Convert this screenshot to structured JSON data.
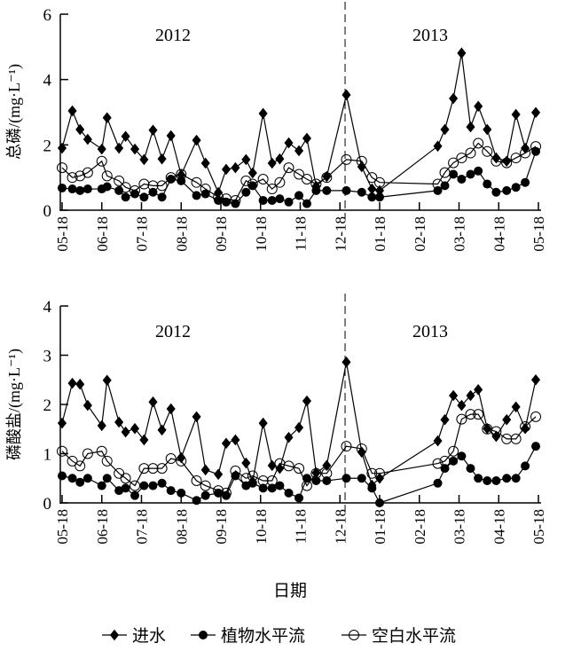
{
  "chart_data": [
    {
      "type": "line",
      "ylabel": "总磷/(mg·L⁻¹)",
      "ylim": [
        0,
        6
      ],
      "yticks": [
        "0",
        "2",
        "4",
        "6"
      ],
      "ytick_values": [
        0,
        2,
        4,
        6
      ],
      "xticks": [
        "05-18",
        "06-18",
        "07-18",
        "08-18",
        "09-18",
        "10-18",
        "11-18",
        "12-18",
        "01-18",
        "02-18",
        "03-18",
        "04-18",
        "05-18"
      ],
      "xtick_dates": [
        "2012-05-18",
        "2012-06-18",
        "2012-07-18",
        "2012-08-18",
        "2012-09-18",
        "2012-10-18",
        "2012-11-18",
        "2012-12-18",
        "2013-01-18",
        "2013-02-18",
        "2013-03-18",
        "2013-04-18",
        "2013-05-18"
      ],
      "annotations": [
        "2012",
        "2013"
      ],
      "divider_date": "2012-12-22",
      "x": [
        "2012-05-18",
        "2012-05-26",
        "2012-06-01",
        "2012-06-07",
        "2012-06-18",
        "2012-06-22",
        "2012-07-01",
        "2012-07-06",
        "2012-07-13",
        "2012-07-20",
        "2012-07-27",
        "2012-08-03",
        "2012-08-10",
        "2012-08-18",
        "2012-08-30",
        "2012-09-06",
        "2012-09-16",
        "2012-09-22",
        "2012-09-29",
        "2012-10-07",
        "2012-10-12",
        "2012-10-20",
        "2012-10-27",
        "2012-11-02",
        "2012-11-09",
        "2012-11-17",
        "2012-11-23",
        "2012-11-30",
        "2012-12-08",
        "2012-12-23",
        "2013-01-04",
        "2013-01-12",
        "2013-01-18",
        "2013-03-03",
        "2013-03-08",
        "2013-03-14",
        "2013-03-20",
        "2013-03-27",
        "2013-04-02",
        "2013-04-09",
        "2013-04-16",
        "2013-04-24",
        "2013-05-01",
        "2013-05-08",
        "2013-05-16"
      ],
      "series": [
        {
          "name": "进水",
          "marker": "diamond",
          "values": [
            1.9,
            3.04,
            2.47,
            2.17,
            1.87,
            2.83,
            1.9,
            2.26,
            1.87,
            1.55,
            2.45,
            1.57,
            2.28,
            1.08,
            2.14,
            1.44,
            0.54,
            1.25,
            1.3,
            1.55,
            1.14,
            2.96,
            1.44,
            1.57,
            2.06,
            1.82,
            2.2,
            0.73,
            1.03,
            3.53,
            1.33,
            0.65,
            0.6,
            1.96,
            2.47,
            3.42,
            4.81,
            2.55,
            3.18,
            2.47,
            1.6,
            1.5,
            2.93,
            1.9,
            2.99
          ]
        },
        {
          "name": "植物水平流",
          "marker": "filled-circle",
          "values": [
            0.68,
            0.65,
            0.6,
            0.65,
            0.65,
            0.72,
            0.6,
            0.4,
            0.5,
            0.4,
            0.55,
            0.4,
            0.95,
            0.9,
            0.45,
            0.5,
            0.3,
            0.25,
            0.2,
            0.55,
            0.75,
            0.3,
            0.3,
            0.35,
            0.25,
            0.45,
            0.2,
            0.6,
            0.6,
            0.6,
            0.55,
            0.4,
            0.4,
            0.6,
            0.75,
            1.1,
            0.95,
            1.1,
            1.2,
            0.8,
            0.55,
            0.6,
            0.7,
            0.85,
            1.8
          ]
        },
        {
          "name": "空白水平流",
          "marker": "open-circle",
          "values": [
            1.3,
            1.0,
            1.05,
            1.15,
            1.5,
            1.05,
            0.9,
            0.7,
            0.6,
            0.8,
            0.75,
            0.75,
            1.0,
            1.1,
            0.85,
            0.65,
            0.4,
            0.35,
            0.3,
            0.9,
            0.8,
            0.95,
            0.65,
            0.85,
            1.3,
            1.1,
            0.95,
            0.8,
            1.0,
            1.55,
            1.5,
            1.0,
            0.85,
            0.8,
            1.15,
            1.45,
            1.6,
            1.75,
            2.05,
            1.8,
            1.5,
            1.45,
            1.6,
            1.75,
            1.95
          ]
        }
      ]
    },
    {
      "type": "line",
      "ylabel": "磷酸盐/(mg·L⁻¹)",
      "ylim": [
        0,
        4
      ],
      "yticks": [
        "0",
        "1",
        "2",
        "3",
        "4"
      ],
      "ytick_values": [
        0,
        1,
        2,
        3,
        4
      ],
      "xticks": [
        "05-18",
        "06-18",
        "07-18",
        "08-18",
        "09-18",
        "10-18",
        "11-18",
        "12-18",
        "01-18",
        "02-18",
        "03-18",
        "04-18",
        "05-18"
      ],
      "xtick_dates": [
        "2012-05-18",
        "2012-06-18",
        "2012-07-18",
        "2012-08-18",
        "2012-09-18",
        "2012-10-18",
        "2012-11-18",
        "2012-12-18",
        "2013-01-18",
        "2013-02-18",
        "2013-03-18",
        "2013-04-18",
        "2013-05-18"
      ],
      "annotations": [
        "2012",
        "2013"
      ],
      "divider_date": "2012-12-22",
      "xlabel": "日期",
      "x": [
        "2012-05-18",
        "2012-05-26",
        "2012-06-01",
        "2012-06-07",
        "2012-06-18",
        "2012-06-22",
        "2012-07-01",
        "2012-07-06",
        "2012-07-13",
        "2012-07-20",
        "2012-07-27",
        "2012-08-03",
        "2012-08-10",
        "2012-08-18",
        "2012-08-30",
        "2012-09-06",
        "2012-09-16",
        "2012-09-22",
        "2012-09-29",
        "2012-10-07",
        "2012-10-12",
        "2012-10-20",
        "2012-10-27",
        "2012-11-02",
        "2012-11-09",
        "2012-11-17",
        "2012-11-23",
        "2012-11-30",
        "2012-12-08",
        "2012-12-23",
        "2013-01-04",
        "2013-01-12",
        "2013-01-18",
        "2013-03-03",
        "2013-03-08",
        "2013-03-14",
        "2013-03-20",
        "2013-03-27",
        "2013-04-02",
        "2013-04-09",
        "2013-04-16",
        "2013-04-24",
        "2013-05-01",
        "2013-05-08",
        "2013-05-16"
      ],
      "series": [
        {
          "name": "进水",
          "marker": "diamond",
          "values": [
            1.62,
            2.43,
            2.41,
            1.98,
            1.57,
            2.49,
            1.64,
            1.44,
            1.51,
            1.28,
            2.05,
            1.48,
            1.91,
            0.92,
            1.75,
            0.67,
            0.58,
            1.21,
            1.28,
            0.81,
            0.43,
            1.62,
            0.76,
            0.7,
            1.33,
            1.53,
            2.07,
            0.61,
            0.76,
            2.86,
            1.03,
            0.36,
            0.5,
            1.26,
            1.69,
            2.18,
            1.98,
            2.18,
            2.3,
            1.51,
            1.35,
            1.69,
            1.95,
            1.51,
            2.5
          ]
        },
        {
          "name": "植物水平流",
          "marker": "filled-circle",
          "values": [
            0.55,
            0.5,
            0.42,
            0.5,
            0.35,
            0.5,
            0.25,
            0.3,
            0.15,
            0.35,
            0.35,
            0.4,
            0.25,
            0.2,
            0.05,
            0.15,
            0.2,
            0.15,
            0.55,
            0.35,
            0.4,
            0.3,
            0.3,
            0.35,
            0.2,
            0.1,
            0.5,
            0.45,
            0.45,
            0.5,
            0.5,
            0.3,
            0.0,
            0.4,
            0.7,
            0.85,
            0.95,
            0.7,
            0.5,
            0.45,
            0.45,
            0.5,
            0.5,
            0.75,
            1.15
          ]
        },
        {
          "name": "空白水平流",
          "marker": "open-circle",
          "values": [
            1.05,
            0.85,
            0.75,
            1.0,
            1.05,
            0.85,
            0.6,
            0.5,
            0.35,
            0.7,
            0.7,
            0.7,
            0.9,
            0.85,
            0.45,
            0.35,
            0.25,
            0.2,
            0.65,
            0.5,
            0.55,
            0.45,
            0.45,
            0.8,
            0.75,
            0.7,
            0.35,
            0.6,
            0.6,
            1.15,
            1.1,
            0.6,
            0.6,
            0.8,
            0.85,
            1.05,
            1.7,
            1.8,
            1.8,
            1.5,
            1.45,
            1.3,
            1.3,
            1.55,
            1.75
          ]
        }
      ]
    }
  ],
  "legend": {
    "placement": "bottom",
    "items": [
      {
        "label": "进水",
        "marker": "diamond"
      },
      {
        "label": "植物水平流",
        "marker": "filled-circle"
      },
      {
        "label": "空白水平流",
        "marker": "open-circle"
      }
    ]
  }
}
